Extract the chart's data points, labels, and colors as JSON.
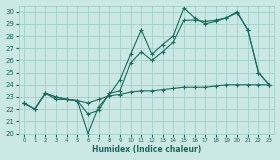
{
  "xlabel": "Humidex (Indice chaleur)",
  "bg_color": "#cce8e4",
  "grid_color": "#99ccc6",
  "line_color": "#1a6b60",
  "xlim": [
    -0.5,
    23.5
  ],
  "ylim": [
    20,
    30.5
  ],
  "xticks": [
    0,
    1,
    2,
    3,
    4,
    5,
    6,
    7,
    8,
    9,
    10,
    11,
    12,
    13,
    14,
    15,
    16,
    17,
    18,
    19,
    20,
    21,
    22,
    23
  ],
  "yticks": [
    20,
    21,
    22,
    23,
    24,
    25,
    26,
    27,
    28,
    29,
    30
  ],
  "line1_x": [
    0,
    1,
    2,
    3,
    4,
    5,
    6,
    7,
    8,
    9,
    10,
    11,
    12,
    13,
    14,
    15,
    16,
    17,
    18,
    19,
    20,
    21,
    22,
    23
  ],
  "line1_y": [
    22.5,
    22.0,
    23.3,
    22.8,
    22.8,
    22.7,
    20.0,
    22.2,
    23.2,
    24.4,
    26.5,
    28.5,
    26.5,
    27.3,
    28.0,
    30.3,
    29.5,
    29.0,
    29.2,
    29.5,
    29.9,
    28.5,
    25.0,
    24.0
  ],
  "line2_x": [
    0,
    1,
    2,
    3,
    4,
    5,
    6,
    7,
    8,
    9,
    10,
    11,
    12,
    13,
    14,
    15,
    16,
    17,
    18,
    19,
    20,
    21,
    22,
    23
  ],
  "line2_y": [
    22.5,
    22.0,
    23.3,
    23.0,
    22.8,
    22.7,
    21.6,
    21.9,
    23.3,
    23.5,
    25.8,
    26.7,
    26.0,
    26.7,
    27.5,
    29.3,
    29.3,
    29.2,
    29.3,
    29.5,
    30.0,
    28.5,
    25.0,
    24.0
  ],
  "line3_x": [
    0,
    1,
    2,
    3,
    4,
    5,
    6,
    7,
    8,
    9,
    10,
    11,
    12,
    13,
    14,
    15,
    16,
    17,
    18,
    19,
    20,
    21,
    22,
    23
  ],
  "line3_y": [
    22.5,
    22.0,
    23.3,
    23.0,
    22.8,
    22.7,
    22.5,
    22.8,
    23.1,
    23.2,
    23.4,
    23.5,
    23.5,
    23.6,
    23.7,
    23.8,
    23.8,
    23.8,
    23.9,
    24.0,
    24.0,
    24.0,
    24.0,
    24.0
  ]
}
